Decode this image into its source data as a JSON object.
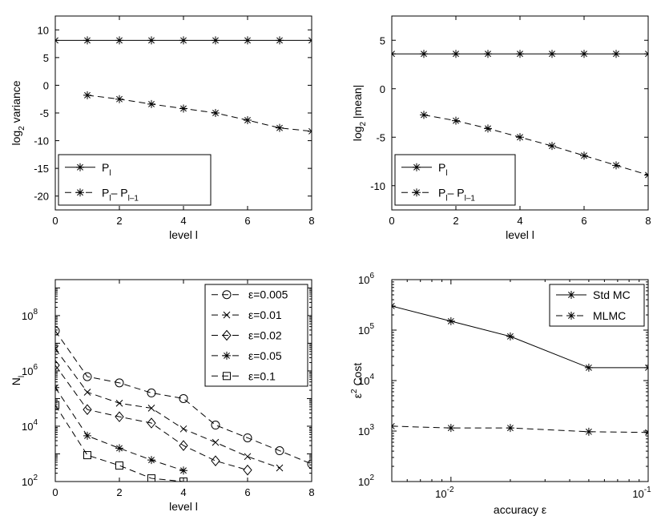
{
  "chart_data": [
    {
      "type": "line",
      "title": "",
      "xlabel": "level l",
      "ylabel_main": "log",
      "ylabel_sub": "2",
      "ylabel_rest": " variance",
      "xlim": [
        0,
        8
      ],
      "ylim": [
        -22.5,
        12.5
      ],
      "xticks": [
        0,
        2,
        4,
        6,
        8
      ],
      "yticks": [
        10,
        5,
        0,
        -5,
        -10,
        -15,
        -20
      ],
      "legend_position": "bottom-left",
      "series": [
        {
          "name_main": "P",
          "name_sub": "l",
          "name_tail": "",
          "name_tail_sub": "",
          "style": "solid",
          "marker": "asterisk",
          "x": [
            0,
            1,
            2,
            3,
            4,
            5,
            6,
            7,
            8
          ],
          "y": [
            8.1,
            8.1,
            8.1,
            8.1,
            8.1,
            8.1,
            8.1,
            8.1,
            8.1
          ]
        },
        {
          "name_main": "P",
          "name_sub": "l",
          "name_tail": "– P",
          "name_tail_sub": "l–1",
          "style": "dashed",
          "marker": "asterisk",
          "x": [
            1,
            2,
            3,
            4,
            5,
            6,
            7,
            8
          ],
          "y": [
            -1.8,
            -2.5,
            -3.4,
            -4.2,
            -5.0,
            -6.3,
            -7.7,
            -8.3
          ]
        }
      ]
    },
    {
      "type": "line",
      "title": "",
      "xlabel": "level l",
      "ylabel_main": "log",
      "ylabel_sub": "2",
      "ylabel_rest": " |mean|",
      "xlim": [
        0,
        8
      ],
      "ylim": [
        -12.5,
        7.5
      ],
      "xticks": [
        0,
        2,
        4,
        6,
        8
      ],
      "yticks": [
        5,
        0,
        -5,
        -10
      ],
      "legend_position": "bottom-left",
      "series": [
        {
          "name_main": "P",
          "name_sub": "l",
          "name_tail": "",
          "name_tail_sub": "",
          "style": "solid",
          "marker": "asterisk",
          "x": [
            0,
            1,
            2,
            3,
            4,
            5,
            6,
            7,
            8
          ],
          "y": [
            3.6,
            3.6,
            3.6,
            3.6,
            3.6,
            3.6,
            3.6,
            3.6,
            3.6
          ]
        },
        {
          "name_main": "P",
          "name_sub": "l",
          "name_tail": "– P",
          "name_tail_sub": "l–1",
          "style": "dashed",
          "marker": "asterisk",
          "x": [
            1,
            2,
            3,
            4,
            5,
            6,
            7,
            8
          ],
          "y": [
            -2.7,
            -3.3,
            -4.1,
            -5.0,
            -5.9,
            -6.9,
            -7.9,
            -8.9
          ]
        }
      ]
    },
    {
      "type": "line",
      "title": "",
      "xlabel": "level l",
      "ylabel_main": "N",
      "ylabel_sub": "l",
      "ylabel_rest": "",
      "yscale": "log",
      "xlim": [
        0,
        8
      ],
      "ylim_exp": [
        2,
        9.3
      ],
      "xticks": [
        0,
        2,
        4,
        6,
        8
      ],
      "yticks_exp": [
        2,
        4,
        6,
        8
      ],
      "legend_position": "top-right",
      "series": [
        {
          "name": "ε=0.005",
          "style": "dashed",
          "marker": "circle",
          "x": [
            0,
            1,
            2,
            3,
            4,
            5,
            6,
            7,
            8
          ],
          "y": [
            28000000,
            620000,
            370000,
            160000,
            100000,
            11000,
            3800,
            1300,
            430
          ]
        },
        {
          "name": "ε=0.01",
          "style": "dashed",
          "marker": "x",
          "x": [
            0,
            1,
            2,
            3,
            4,
            5,
            6,
            7
          ],
          "y": [
            6300000,
            170000,
            68000,
            45000,
            8000,
            2600,
            800,
            310
          ]
        },
        {
          "name": "ε=0.02",
          "style": "dashed",
          "marker": "diamond",
          "x": [
            0,
            1,
            2,
            3,
            4,
            5,
            6
          ],
          "y": [
            1600000,
            40000,
            22000,
            13000,
            2000,
            560,
            260
          ]
        },
        {
          "name": "ε=0.05",
          "style": "dashed",
          "marker": "asterisk",
          "x": [
            0,
            1,
            2,
            3,
            4
          ],
          "y": [
            250000,
            4500,
            1600,
            600,
            250
          ]
        },
        {
          "name": "ε=0.1",
          "style": "dashed",
          "marker": "square",
          "x": [
            0,
            1,
            2,
            3,
            4
          ],
          "y": [
            58000,
            900,
            380,
            130,
            100
          ]
        }
      ]
    },
    {
      "type": "line",
      "title": "",
      "xlabel": "accuracy ε",
      "ylabel_main": "ε",
      "ylabel_sup": "2",
      "ylabel_rest": " Cost",
      "xscale": "log",
      "yscale": "log",
      "xlim_exp": [
        -2.3,
        -1
      ],
      "ylim_exp": [
        2,
        6
      ],
      "xticks_exp": [
        -2,
        -1
      ],
      "yticks_exp": [
        2,
        3,
        4,
        5,
        6
      ],
      "legend_position": "top-right",
      "series": [
        {
          "name": "Std MC",
          "style": "solid",
          "marker": "asterisk",
          "x": [
            0.005,
            0.01,
            0.02,
            0.05,
            0.1
          ],
          "y": [
            300000,
            150000,
            75000,
            18000,
            18000
          ]
        },
        {
          "name": "MLMC",
          "style": "dashed",
          "marker": "asterisk",
          "x": [
            0.005,
            0.01,
            0.02,
            0.05,
            0.1
          ],
          "y": [
            1250,
            1150,
            1150,
            970,
            940
          ]
        }
      ]
    }
  ]
}
